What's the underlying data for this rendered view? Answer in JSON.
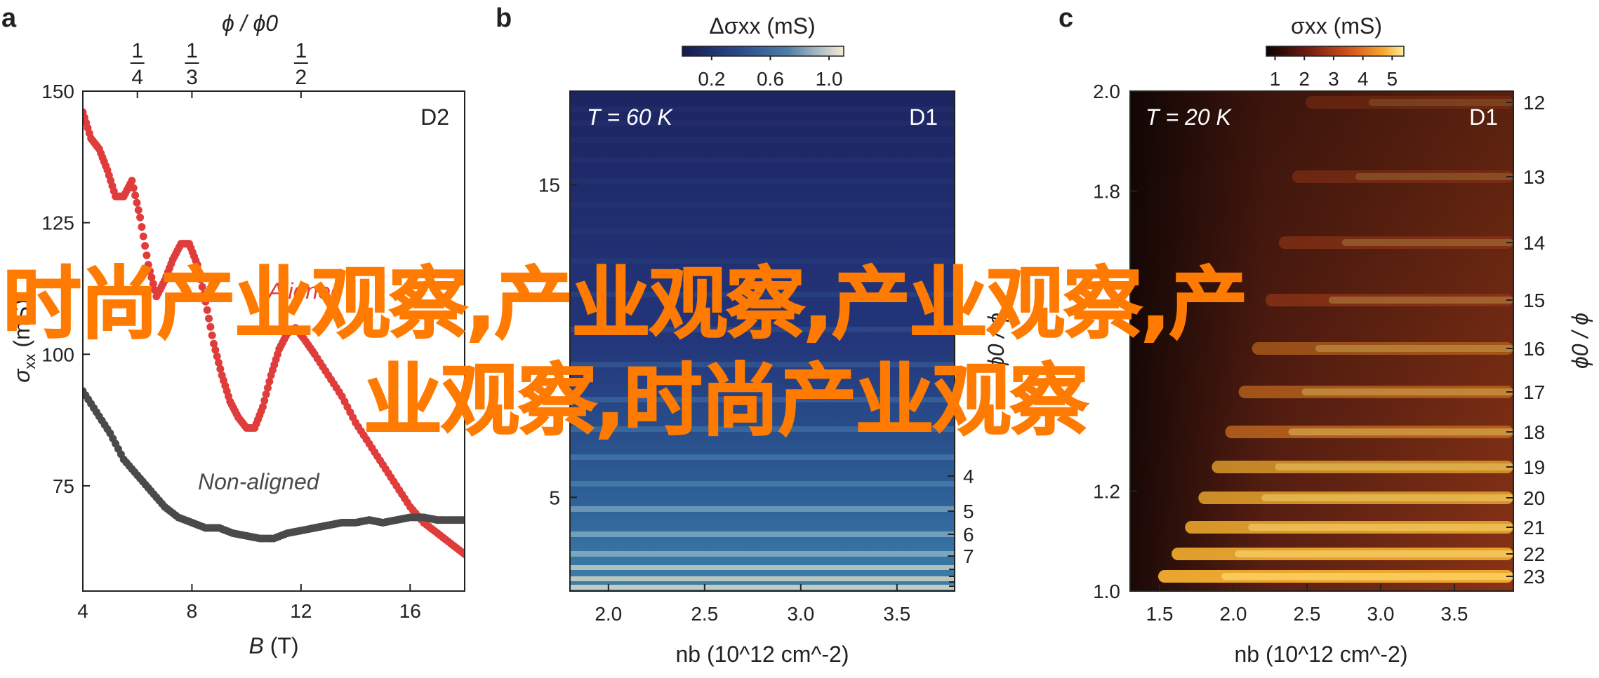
{
  "watermark": {
    "line1": "时尚产业观察,产业观察,产业观察,产",
    "line2": "业观察,时尚产业观察"
  },
  "chart_data": [
    {
      "panel": "a",
      "type": "scatter",
      "device_label": "D2",
      "xlabel_sym": "B",
      "xlabel_unit": " (T)",
      "ylabel_sym": "σ",
      "ylabel_sub": "xx",
      "ylabel_unit": " (mS)",
      "xlim": [
        4,
        18
      ],
      "ylim": [
        55,
        150
      ],
      "xticks": [
        "4",
        "8",
        "12",
        "16"
      ],
      "yticks": [
        "75",
        "100",
        "125",
        "150"
      ],
      "top_axis_label": "ϕ / ϕ0",
      "top_ticks": [
        {
          "num": "1",
          "den": "4",
          "x": 6.0
        },
        {
          "num": "1",
          "den": "3",
          "x": 8.0
        },
        {
          "num": "1",
          "den": "2",
          "x": 12.0
        }
      ],
      "colors": {
        "aligned": "#e03c3c",
        "non_aligned": "#4a4a4a"
      },
      "series": [
        {
          "name": "Aligned",
          "x": [
            4.0,
            4.3,
            4.6,
            4.9,
            5.2,
            5.5,
            5.8,
            6.1,
            6.4,
            6.7,
            7.0,
            7.3,
            7.6,
            7.9,
            8.2,
            8.5,
            8.8,
            9.1,
            9.4,
            9.7,
            10.0,
            10.3,
            10.6,
            10.9,
            11.2,
            11.5,
            11.8,
            12.1,
            12.5,
            13.0,
            13.5,
            14.0,
            14.5,
            15.0,
            15.5,
            16.0,
            16.5,
            17.0,
            17.5,
            18.0
          ],
          "y": [
            146,
            141,
            139,
            135,
            130,
            130,
            133,
            126,
            117,
            111,
            114,
            118,
            121,
            121,
            117,
            110,
            102,
            96,
            91,
            88,
            86,
            86,
            90,
            96,
            101,
            104,
            105,
            103,
            100,
            96,
            92,
            87,
            83,
            79,
            75,
            71,
            68,
            66,
            64,
            62
          ]
        },
        {
          "name": "Non-aligned",
          "x": [
            4.0,
            4.5,
            5.0,
            5.5,
            6.0,
            6.5,
            7.0,
            7.5,
            8.0,
            8.5,
            9.0,
            9.5,
            10.0,
            10.5,
            11.0,
            11.5,
            12.0,
            12.5,
            13.0,
            13.5,
            14.0,
            14.5,
            15.0,
            15.5,
            16.0,
            16.5,
            17.0,
            17.5,
            18.0
          ],
          "y": [
            93,
            89,
            85,
            80,
            77,
            74,
            71,
            69,
            68,
            67,
            67,
            66,
            65.5,
            65,
            65,
            66,
            66.5,
            67,
            67.5,
            68,
            68,
            68.5,
            68,
            68.5,
            69,
            69,
            68.5,
            68.5,
            68.5
          ]
        }
      ]
    },
    {
      "panel": "b",
      "type": "heatmap",
      "condition": "T = 60 K",
      "device_label": "D1",
      "colorbar_label": "Δσxx (mS)",
      "colorbar_ticks": [
        "0.2",
        "0.6",
        "1.0"
      ],
      "xlabel": "nb (10^12 cm^-2)",
      "xlim": [
        1.8,
        3.8
      ],
      "xticks": [
        "2.0",
        "2.5",
        "3.0",
        "3.5"
      ],
      "ylim": [
        2,
        18
      ],
      "yticks": [
        "5",
        "15"
      ],
      "right_axis_label": "ϕ0 / ϕ",
      "right_ticks": [
        "4",
        "5",
        "6",
        "7"
      ],
      "colors": {
        "low": "#1a2466",
        "mid": "#2f78ae",
        "high": "#f4ead2"
      }
    },
    {
      "panel": "c",
      "type": "heatmap",
      "condition": "T = 20 K",
      "device_label": "D1",
      "colorbar_label": "σxx (mS)",
      "colorbar_ticks": [
        "1",
        "2",
        "3",
        "4",
        "5"
      ],
      "xlabel": "nb (10^12 cm^-2)",
      "xlim": [
        1.3,
        3.9
      ],
      "xticks": [
        "1.5",
        "2.0",
        "2.5",
        "3.0",
        "3.5"
      ],
      "ylim": [
        1.0,
        2.0
      ],
      "yticks": [
        "1.0",
        "1.2",
        "1.8",
        "2.0"
      ],
      "right_axis_label": "ϕ0 / ϕ",
      "right_ticks": [
        "12",
        "13",
        "14",
        "15",
        "16",
        "17",
        "18",
        "19",
        "20",
        "21",
        "22",
        "23"
      ],
      "colors": {
        "low": "#140606",
        "mid": "#b8401c",
        "high": "#ffe860"
      }
    }
  ]
}
